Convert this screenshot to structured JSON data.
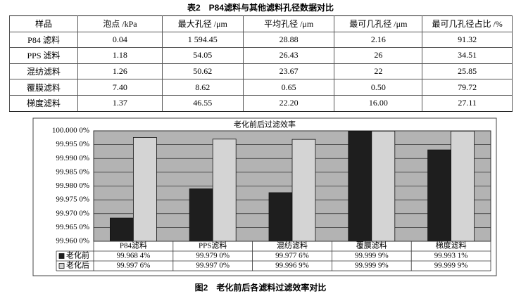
{
  "table": {
    "caption": "表2　P84滤料与其他滤料孔径数据对比",
    "header": [
      "样品",
      "泡点 /kPa",
      "最大孔径 /μm",
      "平均孔径 /μm",
      "最可几孔径 /μm",
      "最可几孔径占比 /%"
    ],
    "rows": [
      [
        "P84 滤料",
        "0.04",
        "1 594.45",
        "28.88",
        "2.16",
        "91.32"
      ],
      [
        "PPS 滤料",
        "1.18",
        "54.05",
        "26.43",
        "26",
        "34.51"
      ],
      [
        "混纺滤料",
        "1.26",
        "50.62",
        "23.67",
        "22",
        "25.85"
      ],
      [
        "覆膜滤料",
        "7.40",
        "8.62",
        "0.65",
        "0.50",
        "79.72"
      ],
      [
        "梯度滤料",
        "1.37",
        "46.55",
        "22.20",
        "16.00",
        "27.11"
      ]
    ]
  },
  "chart_data": {
    "type": "bar",
    "title": "老化前后过滤效率",
    "categories": [
      "P84滤料",
      "PPS滤料",
      "混纺滤料",
      "覆膜滤料",
      "梯度滤料"
    ],
    "series": [
      {
        "name": "老化前",
        "color": "#1e1e1e",
        "values": [
          99.9684,
          99.979,
          99.9776,
          99.9999,
          99.9931
        ],
        "value_labels": [
          "99.968 4%",
          "99.979 0%",
          "99.977 6%",
          "99.999 9%",
          "99.993 1%"
        ]
      },
      {
        "name": "老化后",
        "color": "#d4d4d4",
        "values": [
          99.9976,
          99.997,
          99.9969,
          99.9999,
          99.9999
        ],
        "value_labels": [
          "99.997 6%",
          "99.997 0%",
          "99.996 9%",
          "99.999 9%",
          "99.999 9%"
        ]
      }
    ],
    "ylim": [
      99.96,
      100
    ],
    "yticks": [
      {
        "value": 99.96,
        "label": "99.960 0%"
      },
      {
        "value": 99.965,
        "label": "99.965 0%"
      },
      {
        "value": 99.97,
        "label": "99.970 0%"
      },
      {
        "value": 99.975,
        "label": "99.975 0%"
      },
      {
        "value": 99.98,
        "label": "99.980 0%"
      },
      {
        "value": 99.985,
        "label": "99.985 0%"
      },
      {
        "value": 99.99,
        "label": "99.990 0%"
      },
      {
        "value": 99.995,
        "label": "99.995 0%"
      },
      {
        "value": 100,
        "label": "100.000 0%"
      }
    ],
    "grid": true
  },
  "figure_caption": "图2　老化前后各滤料过滤效率对比"
}
